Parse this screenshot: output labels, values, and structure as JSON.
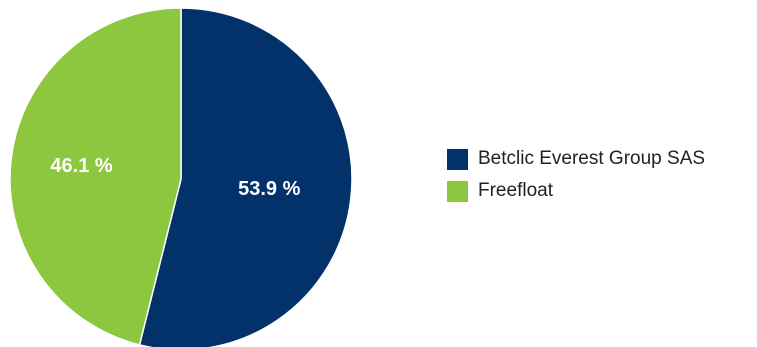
{
  "chart_data": {
    "type": "pie",
    "categories": [
      "Betclic Everest Group SAS",
      "Freefloat"
    ],
    "values": [
      53.9,
      46.1
    ],
    "labels": [
      "53.9 %",
      "46.1 %"
    ],
    "colors": [
      "#03326b",
      "#8dc63f"
    ],
    "slice_border_color": "#ffffff",
    "legend": "right",
    "title": ""
  }
}
